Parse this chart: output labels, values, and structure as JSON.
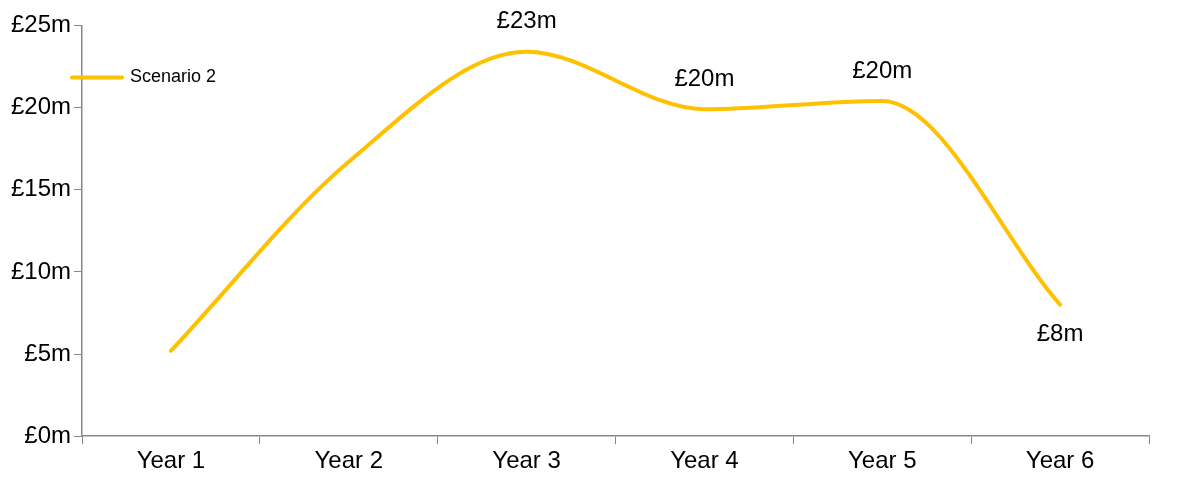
{
  "chart_data": {
    "type": "line",
    "categories": [
      "Year 1",
      "Year 2",
      "Year 3",
      "Year 4",
      "Year 5",
      "Year 6"
    ],
    "series": [
      {
        "name": "Scenario 2",
        "color": "#ffc000",
        "values": [
          5.2,
          16.7,
          23.4,
          19.9,
          20.4,
          8.0
        ],
        "value_labels": [
          null,
          null,
          "£23m",
          "£20m",
          "£20m",
          "£8m"
        ]
      }
    ],
    "ylim": [
      0,
      25
    ],
    "yticks": [
      {
        "value": 0,
        "label": "£0m"
      },
      {
        "value": 5,
        "label": "£5m"
      },
      {
        "value": 10,
        "label": "£10m"
      },
      {
        "value": 15,
        "label": "£15m"
      },
      {
        "value": 20,
        "label": "£20m"
      },
      {
        "value": 25,
        "label": "£25m"
      }
    ],
    "grid": false,
    "legend": "top left",
    "marker": "none",
    "line_style": "solid"
  }
}
